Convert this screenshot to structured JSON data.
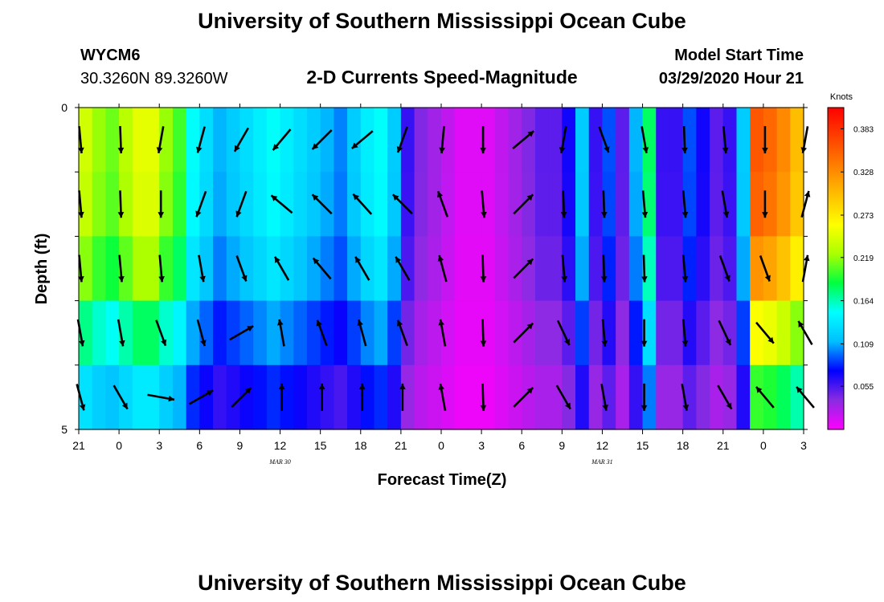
{
  "header": {
    "title_top": "University of Southern Mississippi Ocean Cube",
    "station_id": "WYCM6",
    "station_coords": "30.3260N 89.3260W",
    "subtitle": "2-D Currents Speed-Magnitude",
    "model_start_label": "Model Start Time",
    "model_start_value": "03/29/2020 Hour 21",
    "title_bottom": "University of Southern Mississippi Ocean Cube"
  },
  "chart_data": {
    "type": "heatmap",
    "title": "2-D Currents Speed-Magnitude",
    "xlabel": "Forecast Time(Z)",
    "ylabel": "Depth (ft)",
    "x_tick_labels": [
      "21",
      "0",
      "3",
      "6",
      "9",
      "12",
      "15",
      "18",
      "21",
      "0",
      "3",
      "6",
      "9",
      "12",
      "15",
      "18",
      "21",
      "0",
      "3"
    ],
    "date_labels": [
      {
        "text": "MAR 30",
        "hour_index": 5
      },
      {
        "text": "MAR 31",
        "hour_index": 13
      }
    ],
    "x_range_hours": [
      0,
      54
    ],
    "y_ticks": [
      "0",
      "5"
    ],
    "ylim": [
      0,
      5
    ],
    "depth_rows": 5,
    "time_columns_per_hour": 1,
    "colorbar": {
      "title": "Knots",
      "ticks": [
        "0.383",
        "0.328",
        "0.273",
        "0.219",
        "0.164",
        "0.109",
        "0.055"
      ],
      "range": [
        0,
        0.41
      ],
      "colors": [
        "#ff00ff",
        "#8a2be2",
        "#0000ff",
        "#00bfff",
        "#00ffff",
        "#00ff40",
        "#aaff00",
        "#ffff00",
        "#ffc000",
        "#ff8000",
        "#ff4000",
        "#ff0000"
      ]
    },
    "speed_by_hour": [
      0.24,
      0.22,
      0.21,
      0.23,
      0.25,
      0.25,
      0.22,
      0.2,
      0.15,
      0.13,
      0.11,
      0.12,
      0.13,
      0.14,
      0.15,
      0.14,
      0.13,
      0.12,
      0.11,
      0.1,
      0.12,
      0.14,
      0.15,
      0.12,
      0.06,
      0.04,
      0.03,
      0.02,
      0.01,
      0.01,
      0.01,
      0.02,
      0.03,
      0.04,
      0.05,
      0.05,
      0.07,
      0.12,
      0.06,
      0.09,
      0.05,
      0.11,
      0.18,
      0.06,
      0.06,
      0.09,
      0.07,
      0.05,
      0.06,
      0.12,
      0.36,
      0.35,
      0.33,
      0.3,
      0.25
    ],
    "depth_factors": [
      1.0,
      0.98,
      0.9,
      0.72,
      0.55
    ],
    "vectors_by_col": [
      {
        "hour": 0,
        "dirs": [
          175,
          175,
          175,
          170,
          165
        ]
      },
      {
        "hour": 3,
        "dirs": [
          178,
          178,
          175,
          170,
          150
        ]
      },
      {
        "hour": 6,
        "dirs": [
          190,
          180,
          175,
          160,
          100
        ]
      },
      {
        "hour": 9,
        "dirs": [
          195,
          200,
          170,
          165,
          60
        ]
      },
      {
        "hour": 12,
        "dirs": [
          210,
          200,
          160,
          60,
          45
        ]
      },
      {
        "hour": 15,
        "dirs": [
          220,
          310,
          330,
          350,
          0
        ]
      },
      {
        "hour": 18,
        "dirs": [
          225,
          315,
          320,
          340,
          0
        ]
      },
      {
        "hour": 21,
        "dirs": [
          230,
          318,
          330,
          345,
          0
        ]
      },
      {
        "hour": 24,
        "dirs": [
          200,
          315,
          330,
          340,
          0
        ]
      },
      {
        "hour": 27,
        "dirs": [
          185,
          340,
          345,
          350,
          350
        ]
      },
      {
        "hour": 30,
        "dirs": [
          180,
          175,
          178,
          178,
          178
        ]
      },
      {
        "hour": 33,
        "dirs": [
          50,
          45,
          45,
          45,
          45
        ]
      },
      {
        "hour": 36,
        "dirs": [
          190,
          178,
          175,
          155,
          150
        ]
      },
      {
        "hour": 39,
        "dirs": [
          160,
          178,
          178,
          175,
          170
        ]
      },
      {
        "hour": 42,
        "dirs": [
          170,
          175,
          178,
          180,
          180
        ]
      },
      {
        "hour": 45,
        "dirs": [
          178,
          175,
          175,
          175,
          170
        ]
      },
      {
        "hour": 48,
        "dirs": [
          175,
          170,
          160,
          155,
          150
        ]
      },
      {
        "hour": 51,
        "dirs": [
          180,
          180,
          160,
          140,
          320
        ]
      },
      {
        "hour": 54,
        "dirs": [
          190,
          15,
          10,
          330,
          320
        ]
      }
    ]
  }
}
